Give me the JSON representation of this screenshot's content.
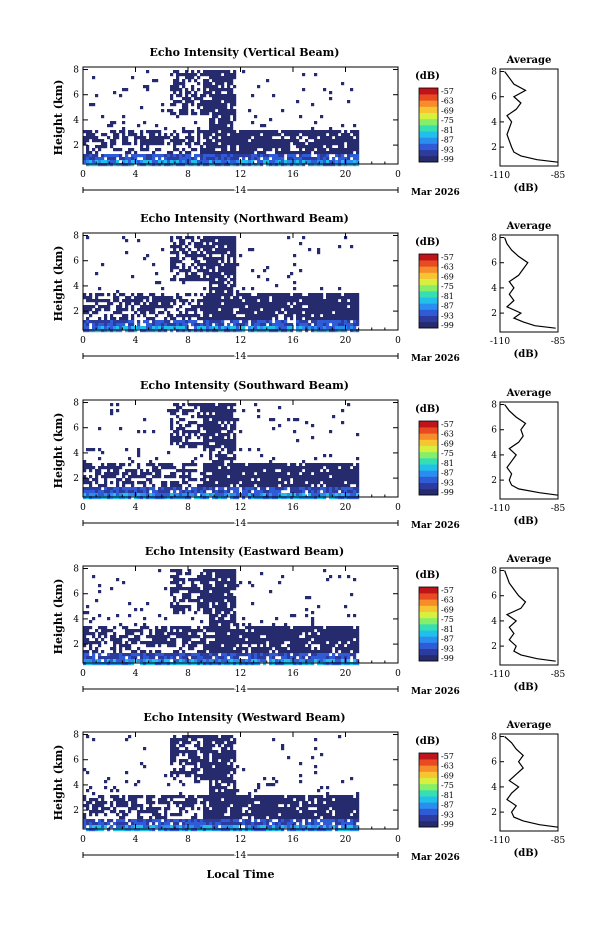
{
  "panels": [
    {
      "title": "Echo Intensity (Vertical Beam)"
    },
    {
      "title": "Echo Intensity (Northward Beam)"
    },
    {
      "title": "Echo Intensity (Southward Beam)"
    },
    {
      "title": "Echo Intensity (Eastward Beam)"
    },
    {
      "title": "Echo Intensity (Westward Beam)"
    }
  ],
  "common": {
    "ylabel": "Height (km)",
    "xlabel": "Local Time",
    "date_label": "Mar 2026",
    "day_label": "14",
    "colorbar_unit": "(dB)",
    "avg_title": "Average",
    "avg_xlabel": "(dB)"
  },
  "colors": {
    "colormap": [
      "#262b6e",
      "#2b3c9e",
      "#2f5bd6",
      "#2a8ef0",
      "#20c0ea",
      "#35dfb2",
      "#86ef6a",
      "#d7ef3e",
      "#f8c532",
      "#f78c2a",
      "#e84a22",
      "#c0141b"
    ]
  },
  "chart_data": [
    {
      "type": "heatmap",
      "title": "Echo Intensity (Vertical Beam)",
      "xlabel": "Local Time",
      "ylabel": "Height (km)",
      "x_ticks": [
        "0",
        "4",
        "8",
        "12",
        "16",
        "20",
        "0"
      ],
      "x_range_hours": [
        0,
        24
      ],
      "y_ticks": [
        "2",
        "4",
        "6",
        "8"
      ],
      "y_range_km": [
        0.5,
        8.2
      ],
      "colorbar": {
        "unit": "(dB)",
        "ticks": [
          "-57",
          "-63",
          "-69",
          "-75",
          "-81",
          "-87",
          "-93",
          "-99"
        ],
        "range_db": [
          -99,
          -57
        ]
      },
      "average_profile": {
        "title": "Average",
        "xlabel": "(dB)",
        "x_ticks": [
          "-110",
          "-85"
        ],
        "y_ticks": [
          "2",
          "4",
          "6",
          "8"
        ],
        "height_km": [
          0.8,
          1.0,
          1.3,
          1.6,
          2.0,
          2.5,
          3.0,
          3.5,
          4.0,
          4.5,
          5.0,
          5.5,
          6.0,
          6.5,
          7.0,
          7.5,
          8.0
        ],
        "db": [
          -85,
          -94,
          -101,
          -104,
          -105,
          -106,
          -107,
          -106,
          -105,
          -107,
          -103,
          -101,
          -104,
          -99,
          -104,
          -106,
          -108
        ]
      }
    },
    {
      "type": "heatmap",
      "title": "Echo Intensity (Northward Beam)",
      "xlabel": "Local Time",
      "ylabel": "Height (km)",
      "x_ticks": [
        "0",
        "4",
        "8",
        "12",
        "16",
        "20",
        "0"
      ],
      "x_range_hours": [
        0,
        24
      ],
      "y_ticks": [
        "2",
        "4",
        "6",
        "8"
      ],
      "y_range_km": [
        0.5,
        8.2
      ],
      "colorbar": {
        "unit": "(dB)",
        "ticks": [
          "-57",
          "-63",
          "-69",
          "-75",
          "-81",
          "-87",
          "-93",
          "-99"
        ],
        "range_db": [
          -99,
          -57
        ]
      },
      "average_profile": {
        "title": "Average",
        "xlabel": "(dB)",
        "x_ticks": [
          "-110",
          "-85"
        ],
        "y_ticks": [
          "2",
          "4",
          "6",
          "8"
        ],
        "height_km": [
          0.8,
          1.0,
          1.3,
          1.6,
          2.0,
          2.5,
          3.0,
          3.5,
          4.0,
          4.5,
          5.0,
          5.5,
          6.0,
          6.5,
          7.0,
          7.5,
          8.0
        ],
        "db": [
          -86,
          -95,
          -100,
          -104,
          -101,
          -107,
          -104,
          -106,
          -104,
          -106,
          -102,
          -100,
          -98,
          -102,
          -105,
          -107,
          -108
        ]
      }
    },
    {
      "type": "heatmap",
      "title": "Echo Intensity (Southward Beam)",
      "xlabel": "Local Time",
      "ylabel": "Height (km)",
      "x_ticks": [
        "0",
        "4",
        "8",
        "12",
        "16",
        "20",
        "0"
      ],
      "x_range_hours": [
        0,
        24
      ],
      "y_ticks": [
        "2",
        "4",
        "6",
        "8"
      ],
      "y_range_km": [
        0.5,
        8.2
      ],
      "colorbar": {
        "unit": "(dB)",
        "ticks": [
          "-57",
          "-63",
          "-69",
          "-75",
          "-81",
          "-87",
          "-93",
          "-99"
        ],
        "range_db": [
          -99,
          -57
        ]
      },
      "average_profile": {
        "title": "Average",
        "xlabel": "(dB)",
        "x_ticks": [
          "-110",
          "-85"
        ],
        "y_ticks": [
          "2",
          "4",
          "6",
          "8"
        ],
        "height_km": [
          0.8,
          1.0,
          1.3,
          1.6,
          2.0,
          2.5,
          3.0,
          3.5,
          4.0,
          4.5,
          5.0,
          5.5,
          6.0,
          6.5,
          7.0,
          7.5,
          8.0
        ],
        "db": [
          -85,
          -93,
          -102,
          -105,
          -106,
          -105,
          -107,
          -105,
          -103,
          -106,
          -102,
          -100,
          -101,
          -99,
          -103,
          -106,
          -108
        ]
      }
    },
    {
      "type": "heatmap",
      "title": "Echo Intensity (Eastward Beam)",
      "xlabel": "Local Time",
      "ylabel": "Height (km)",
      "x_ticks": [
        "0",
        "4",
        "8",
        "12",
        "16",
        "20",
        "0"
      ],
      "x_range_hours": [
        0,
        24
      ],
      "y_ticks": [
        "2",
        "4",
        "6",
        "8"
      ],
      "y_range_km": [
        0.5,
        8.2
      ],
      "colorbar": {
        "unit": "(dB)",
        "ticks": [
          "-57",
          "-63",
          "-69",
          "-75",
          "-81",
          "-87",
          "-93",
          "-99"
        ],
        "range_db": [
          -99,
          -57
        ]
      },
      "average_profile": {
        "title": "Average",
        "xlabel": "(dB)",
        "x_ticks": [
          "-110",
          "-85"
        ],
        "y_ticks": [
          "2",
          "4",
          "6",
          "8"
        ],
        "height_km": [
          0.8,
          1.0,
          1.3,
          1.6,
          2.0,
          2.5,
          3.0,
          3.5,
          4.0,
          4.5,
          5.0,
          5.5,
          6.0,
          6.5,
          7.0,
          7.5,
          8.0
        ],
        "db": [
          -86,
          -94,
          -101,
          -104,
          -103,
          -106,
          -104,
          -106,
          -103,
          -107,
          -101,
          -99,
          -102,
          -104,
          -106,
          -107,
          -108
        ]
      }
    },
    {
      "type": "heatmap",
      "title": "Echo Intensity (Westward Beam)",
      "xlabel": "Local Time",
      "ylabel": "Height (km)",
      "x_ticks": [
        "0",
        "4",
        "8",
        "12",
        "16",
        "20",
        "0"
      ],
      "x_range_hours": [
        0,
        24
      ],
      "y_ticks": [
        "2",
        "4",
        "6",
        "8"
      ],
      "y_range_km": [
        0.5,
        8.2
      ],
      "colorbar": {
        "unit": "(dB)",
        "ticks": [
          "-57",
          "-63",
          "-69",
          "-75",
          "-81",
          "-87",
          "-93",
          "-99"
        ],
        "range_db": [
          -99,
          -57
        ]
      },
      "average_profile": {
        "title": "Average",
        "xlabel": "(dB)",
        "x_ticks": [
          "-110",
          "-85"
        ],
        "y_ticks": [
          "2",
          "4",
          "6",
          "8"
        ],
        "height_km": [
          0.8,
          1.0,
          1.3,
          1.6,
          2.0,
          2.5,
          3.0,
          3.5,
          4.0,
          4.5,
          5.0,
          5.5,
          6.0,
          6.5,
          7.0,
          7.5,
          8.0
        ],
        "db": [
          -85,
          -93,
          -100,
          -104,
          -105,
          -103,
          -107,
          -105,
          -102,
          -106,
          -103,
          -100,
          -102,
          -100,
          -103,
          -105,
          -108
        ]
      }
    }
  ]
}
